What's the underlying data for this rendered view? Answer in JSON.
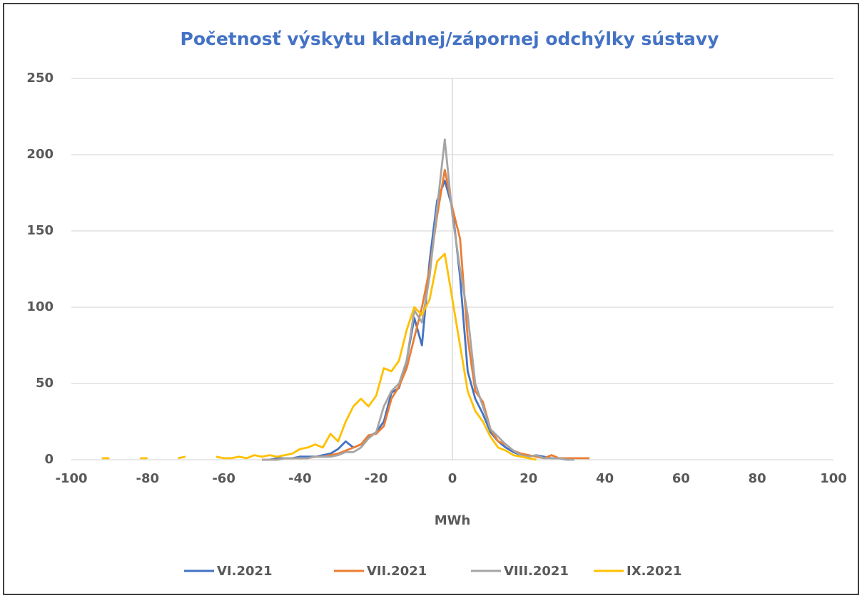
{
  "chart_data": {
    "type": "line",
    "title": "Početnosť výskytu kladnej/zápornej odchýlky sústavy",
    "x_label": "MWh",
    "x": [
      -92,
      -90,
      -88,
      -86,
      -84,
      -82,
      -80,
      -78,
      -76,
      -74,
      -72,
      -70,
      -68,
      -66,
      -64,
      -62,
      -60,
      -58,
      -56,
      -54,
      -52,
      -50,
      -48,
      -46,
      -44,
      -42,
      -40,
      -38,
      -36,
      -34,
      -32,
      -30,
      -28,
      -26,
      -24,
      -22,
      -20,
      -18,
      -16,
      -14,
      -12,
      -10,
      -8,
      -6,
      -4,
      -2,
      0,
      2,
      4,
      6,
      8,
      10,
      12,
      14,
      16,
      18,
      20,
      22,
      24,
      26,
      28,
      30,
      32,
      34,
      36
    ],
    "series": [
      {
        "name": "VI.2021",
        "color": "#4472c4",
        "values": [
          null,
          null,
          null,
          null,
          null,
          null,
          null,
          null,
          null,
          null,
          null,
          null,
          null,
          null,
          null,
          null,
          null,
          null,
          null,
          null,
          null,
          0,
          0,
          1,
          1,
          1,
          2,
          2,
          2,
          3,
          4,
          7,
          12,
          8,
          10,
          15,
          18,
          25,
          44,
          47,
          65,
          93,
          75,
          130,
          170,
          183,
          165,
          120,
          58,
          40,
          30,
          18,
          12,
          8,
          5,
          3,
          2,
          3,
          2,
          1,
          1,
          0,
          null,
          null,
          null
        ]
      },
      {
        "name": "VII.2021",
        "color": "#ed7d31",
        "values": [
          null,
          null,
          null,
          null,
          null,
          null,
          null,
          null,
          null,
          null,
          null,
          null,
          null,
          null,
          null,
          null,
          null,
          null,
          null,
          null,
          null,
          0,
          0,
          0,
          1,
          1,
          1,
          1,
          2,
          2,
          3,
          4,
          6,
          8,
          10,
          16,
          17,
          22,
          40,
          48,
          60,
          80,
          100,
          125,
          160,
          190,
          165,
          145,
          80,
          45,
          38,
          20,
          12,
          10,
          6,
          4,
          3,
          2,
          1,
          3,
          1,
          1,
          1,
          1,
          1
        ]
      },
      {
        "name": "VIII.2021",
        "color": "#a5a5a5",
        "values": [
          null,
          null,
          null,
          null,
          null,
          null,
          null,
          null,
          null,
          null,
          null,
          null,
          null,
          null,
          null,
          null,
          null,
          null,
          null,
          null,
          null,
          0,
          0,
          0,
          1,
          1,
          1,
          1,
          2,
          2,
          2,
          3,
          5,
          5,
          8,
          14,
          18,
          35,
          45,
          50,
          65,
          98,
          90,
          120,
          165,
          210,
          160,
          125,
          95,
          50,
          35,
          20,
          15,
          10,
          6,
          3,
          2,
          3,
          1,
          1,
          1,
          0,
          0,
          null,
          null
        ]
      },
      {
        "name": "IX.2021",
        "color": "#ffc000",
        "values": [
          1,
          1,
          null,
          null,
          null,
          1,
          1,
          null,
          null,
          null,
          1,
          2,
          null,
          null,
          null,
          2,
          1,
          1,
          2,
          1,
          3,
          2,
          3,
          2,
          3,
          4,
          7,
          8,
          10,
          8,
          17,
          12,
          25,
          35,
          40,
          35,
          42,
          60,
          58,
          65,
          85,
          100,
          95,
          105,
          130,
          135,
          105,
          75,
          45,
          32,
          25,
          15,
          8,
          6,
          3,
          2,
          1,
          0,
          null,
          null,
          null,
          null,
          null,
          null,
          null
        ]
      }
    ],
    "xlim": [
      -100,
      100
    ],
    "xticks": [
      -100,
      -80,
      -60,
      -40,
      -20,
      0,
      20,
      40,
      60,
      80,
      100
    ],
    "ylim": [
      0,
      250
    ],
    "yticks": [
      0,
      50,
      100,
      150,
      200,
      250
    ],
    "grid": true,
    "legend": "bottom"
  }
}
